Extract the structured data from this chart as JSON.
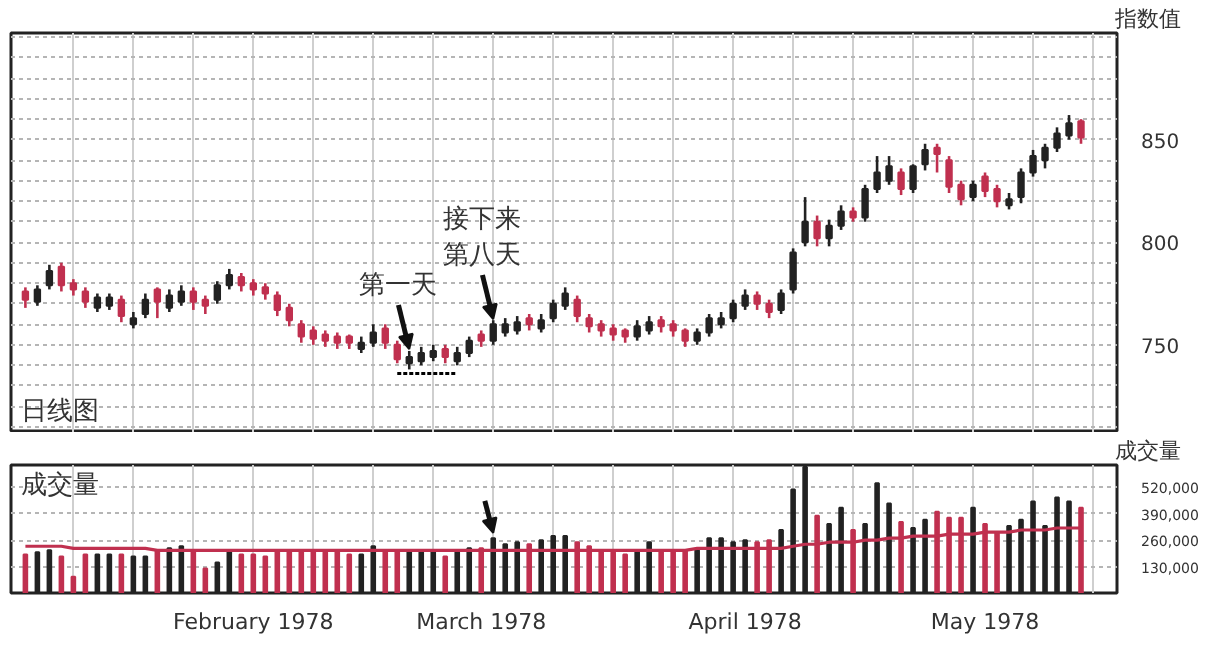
{
  "chart_data": [
    {
      "type": "candlestick",
      "ylabel": "指数值",
      "categories": [
        null,
        null,
        null,
        null,
        null,
        null,
        null,
        null,
        null,
        null,
        null,
        null,
        null,
        null,
        null,
        null,
        null,
        null,
        null,
        null,
        null,
        null,
        null,
        null,
        null,
        null,
        null,
        null,
        null,
        null,
        null,
        null,
        null,
        null,
        null,
        null,
        null,
        null,
        null,
        null,
        null,
        null,
        null,
        null,
        null,
        null,
        null,
        null,
        null,
        null,
        null,
        null,
        null,
        null,
        null,
        null,
        null,
        null,
        null,
        null,
        null,
        null,
        null,
        null,
        null,
        null,
        null,
        null,
        null,
        null,
        null,
        null,
        null,
        null,
        null,
        null,
        null,
        null,
        null,
        null,
        null,
        null,
        null,
        null,
        null,
        null,
        null,
        null,
        null
      ],
      "ohlc": [
        [
          776,
          778,
          768,
          772
        ],
        [
          771,
          779,
          769,
          777
        ],
        [
          779,
          789,
          777,
          786
        ],
        [
          788,
          790,
          776,
          779
        ],
        [
          780,
          782,
          774,
          777
        ],
        [
          776,
          778,
          768,
          771
        ],
        [
          768,
          775,
          766,
          773
        ],
        [
          769,
          775,
          767,
          773
        ],
        [
          772,
          774,
          761,
          764
        ],
        [
          760,
          766,
          758,
          763
        ],
        [
          765,
          775,
          763,
          772
        ],
        [
          777,
          778,
          763,
          771
        ],
        [
          768,
          777,
          766,
          774
        ],
        [
          771,
          779,
          769,
          776
        ],
        [
          776,
          778,
          767,
          771
        ],
        [
          772,
          774,
          765,
          769
        ],
        [
          772,
          781,
          770,
          779
        ],
        [
          779,
          787,
          777,
          784
        ],
        [
          783,
          785,
          776,
          779
        ],
        [
          780,
          782,
          774,
          777
        ],
        [
          778,
          780,
          772,
          775
        ],
        [
          774,
          776,
          764,
          767
        ],
        [
          768,
          770,
          759,
          762
        ],
        [
          760,
          762,
          751,
          754
        ],
        [
          757,
          759,
          750,
          753
        ],
        [
          755,
          757,
          749,
          752
        ],
        [
          754,
          756,
          748,
          751
        ],
        [
          754,
          755,
          748,
          751
        ],
        [
          748,
          754,
          746,
          751
        ],
        [
          751,
          760,
          749,
          756
        ],
        [
          758,
          760,
          748,
          751
        ],
        [
          750,
          752,
          741,
          743
        ],
        [
          741,
          747,
          738,
          744
        ],
        [
          742,
          749,
          740,
          746
        ],
        [
          744,
          750,
          742,
          747
        ],
        [
          748,
          750,
          741,
          744
        ],
        [
          742,
          749,
          740,
          746
        ],
        [
          746,
          754,
          744,
          752
        ],
        [
          755,
          757,
          749,
          752
        ],
        [
          752,
          762,
          750,
          760
        ],
        [
          756,
          763,
          754,
          760
        ],
        [
          757,
          764,
          755,
          761
        ],
        [
          763,
          765,
          757,
          760
        ],
        [
          758,
          765,
          756,
          762
        ],
        [
          763,
          772,
          761,
          770
        ],
        [
          769,
          778,
          767,
          775
        ],
        [
          772,
          774,
          761,
          764
        ],
        [
          763,
          765,
          756,
          759
        ],
        [
          760,
          762,
          754,
          757
        ],
        [
          758,
          760,
          752,
          755
        ],
        [
          757,
          758,
          751,
          754
        ],
        [
          754,
          762,
          752,
          759
        ],
        [
          757,
          764,
          755,
          761
        ],
        [
          762,
          764,
          756,
          759
        ],
        [
          760,
          762,
          754,
          757
        ],
        [
          757,
          758,
          749,
          752
        ],
        [
          752,
          758,
          750,
          756
        ],
        [
          756,
          765,
          754,
          763
        ],
        [
          760,
          766,
          758,
          763
        ],
        [
          763,
          772,
          761,
          770
        ],
        [
          769,
          777,
          767,
          774
        ],
        [
          774,
          776,
          767,
          770
        ],
        [
          770,
          772,
          763,
          766
        ],
        [
          767,
          777,
          765,
          775
        ],
        [
          777,
          797,
          775,
          795
        ],
        [
          800,
          822,
          798,
          810
        ],
        [
          810,
          813,
          798,
          802
        ],
        [
          802,
          811,
          798,
          808
        ],
        [
          808,
          818,
          806,
          815
        ],
        [
          815,
          817,
          810,
          812
        ],
        [
          812,
          828,
          810,
          826
        ],
        [
          826,
          842,
          824,
          834
        ],
        [
          830,
          842,
          828,
          837
        ],
        [
          834,
          836,
          823,
          826
        ],
        [
          826,
          838,
          824,
          837
        ],
        [
          838,
          848,
          835,
          845
        ],
        [
          846,
          848,
          834,
          843
        ],
        [
          840,
          842,
          824,
          827
        ],
        [
          828,
          830,
          818,
          821
        ],
        [
          822,
          830,
          820,
          828
        ],
        [
          832,
          834,
          822,
          825
        ],
        [
          826,
          828,
          817,
          820
        ],
        [
          818,
          824,
          816,
          821
        ],
        [
          822,
          836,
          819,
          834
        ],
        [
          834,
          845,
          832,
          842
        ],
        [
          840,
          848,
          836,
          846
        ],
        [
          846,
          856,
          844,
          853
        ],
        [
          852,
          862,
          850,
          858
        ],
        [
          859,
          860,
          848,
          851
        ]
      ],
      "colors": [
        "#c0304f",
        "#222222",
        "#222222",
        "#c0304f",
        "#c0304f",
        "#c0304f",
        "#222222",
        "#222222",
        "#c0304f",
        "#222222",
        "#222222",
        "#c0304f",
        "#222222",
        "#222222",
        "#c0304f",
        "#c0304f",
        "#222222",
        "#222222",
        "#c0304f",
        "#c0304f",
        "#c0304f",
        "#c0304f",
        "#c0304f",
        "#c0304f",
        "#c0304f",
        "#c0304f",
        "#c0304f",
        "#c0304f",
        "#222222",
        "#222222",
        "#c0304f",
        "#c0304f",
        "#222222",
        "#222222",
        "#222222",
        "#c0304f",
        "#222222",
        "#222222",
        "#c0304f",
        "#222222",
        "#222222",
        "#222222",
        "#c0304f",
        "#222222",
        "#222222",
        "#222222",
        "#c0304f",
        "#c0304f",
        "#c0304f",
        "#c0304f",
        "#c0304f",
        "#222222",
        "#222222",
        "#c0304f",
        "#c0304f",
        "#c0304f",
        "#222222",
        "#222222",
        "#222222",
        "#222222",
        "#222222",
        "#c0304f",
        "#c0304f",
        "#222222",
        "#222222",
        "#222222",
        "#c0304f",
        "#222222",
        "#222222",
        "#c0304f",
        "#222222",
        "#222222",
        "#222222",
        "#c0304f",
        "#222222",
        "#222222",
        "#c0304f",
        "#c0304f",
        "#c0304f",
        "#222222",
        "#c0304f",
        "#c0304f",
        "#222222",
        "#222222",
        "#222222",
        "#222222",
        "#222222",
        "#222222",
        "#c0304f"
      ],
      "series": [
        {
          "type": "line",
          "values": [
            null,
            null,
            null,
            null,
            null,
            null,
            null,
            null,
            null,
            null,
            null,
            null,
            null,
            null,
            null,
            null,
            null,
            null,
            null,
            null,
            null,
            null,
            null,
            null,
            null,
            null,
            null,
            null,
            null,
            null,
            null,
            736,
            736,
            736,
            736,
            736,
            736,
            null,
            null,
            null,
            null,
            null,
            null,
            null,
            null,
            null,
            null,
            null,
            null,
            null,
            null,
            null,
            null,
            null,
            null,
            null,
            null,
            null,
            null,
            null,
            null,
            null,
            null,
            null,
            null,
            null,
            null,
            null,
            null,
            null,
            null,
            null,
            null,
            null,
            null,
            null,
            null,
            null,
            null,
            null,
            null,
            null,
            null,
            null,
            null,
            null,
            null,
            null,
            null
          ],
          "color": "#000000",
          "line_style": "dotted"
        }
      ],
      "ylim": [
        707,
        902
      ],
      "yticks": [
        {
          "value": 710,
          "label": null
        },
        {
          "value": 720,
          "label": null
        },
        {
          "value": 730,
          "label": null
        },
        {
          "value": 740,
          "label": null
        },
        750,
        {
          "value": 760,
          "label": null
        },
        {
          "value": 770,
          "label": null
        },
        {
          "value": 780,
          "label": null
        },
        {
          "value": 790,
          "label": null
        },
        800,
        {
          "value": 810,
          "label": null
        },
        {
          "value": 820,
          "label": null
        },
        {
          "value": 830,
          "label": null
        },
        {
          "value": 840,
          "label": null
        },
        850,
        {
          "value": 860,
          "label": null
        },
        {
          "value": 870,
          "label": null
        },
        {
          "value": 880,
          "label": null
        },
        {
          "value": 890,
          "label": null
        },
        {
          "value": 900,
          "label": null
        }
      ],
      "tick_labels": "y",
      "grid": true,
      "annotations": [
        "日线图",
        "第一天",
        "接下来第八天"
      ]
    },
    {
      "type": "bar",
      "ylabel": "成交量",
      "categories": [
        null,
        null,
        null,
        null,
        null,
        null,
        null,
        null,
        null,
        null,
        null,
        null,
        null,
        null,
        null,
        null,
        null,
        null,
        null,
        "February 1978",
        null,
        null,
        null,
        null,
        null,
        null,
        null,
        null,
        null,
        null,
        null,
        null,
        null,
        null,
        null,
        null,
        null,
        null,
        "March 1978",
        null,
        null,
        null,
        null,
        null,
        null,
        null,
        null,
        null,
        null,
        null,
        null,
        null,
        null,
        null,
        null,
        null,
        null,
        null,
        null,
        null,
        "April 1978",
        null,
        null,
        null,
        null,
        null,
        null,
        null,
        null,
        null,
        null,
        null,
        null,
        null,
        null,
        null,
        null,
        null,
        null,
        null,
        "May 1978",
        null,
        null,
        null,
        null,
        null,
        null,
        null,
        null
      ],
      "series": [
        {
          "type": "bar",
          "values": [
            190000,
            200000,
            210000,
            180000,
            80000,
            190000,
            190000,
            190000,
            190000,
            180000,
            180000,
            210000,
            220000,
            230000,
            210000,
            120000,
            150000,
            210000,
            190000,
            190000,
            180000,
            210000,
            210000,
            210000,
            210000,
            200000,
            210000,
            190000,
            190000,
            230000,
            210000,
            210000,
            210000,
            210000,
            210000,
            180000,
            210000,
            220000,
            220000,
            270000,
            240000,
            250000,
            240000,
            260000,
            280000,
            280000,
            250000,
            230000,
            210000,
            200000,
            190000,
            210000,
            250000,
            210000,
            210000,
            210000,
            210000,
            270000,
            270000,
            250000,
            260000,
            250000,
            260000,
            310000,
            510000,
            620000,
            380000,
            340000,
            420000,
            310000,
            340000,
            540000,
            440000,
            350000,
            320000,
            360000,
            400000,
            370000,
            370000,
            420000,
            340000,
            300000,
            330000,
            360000,
            450000,
            330000,
            470000,
            450000,
            420000
          ],
          "colors": [
            "#c0304f",
            "#222222",
            "#222222",
            "#c0304f",
            "#c0304f",
            "#c0304f",
            "#222222",
            "#222222",
            "#c0304f",
            "#222222",
            "#222222",
            "#c0304f",
            "#222222",
            "#222222",
            "#c0304f",
            "#c0304f",
            "#222222",
            "#222222",
            "#c0304f",
            "#c0304f",
            "#c0304f",
            "#c0304f",
            "#c0304f",
            "#c0304f",
            "#c0304f",
            "#c0304f",
            "#c0304f",
            "#c0304f",
            "#222222",
            "#222222",
            "#c0304f",
            "#c0304f",
            "#222222",
            "#222222",
            "#222222",
            "#c0304f",
            "#222222",
            "#222222",
            "#c0304f",
            "#222222",
            "#222222",
            "#222222",
            "#c0304f",
            "#222222",
            "#222222",
            "#222222",
            "#c0304f",
            "#c0304f",
            "#c0304f",
            "#c0304f",
            "#c0304f",
            "#222222",
            "#222222",
            "#c0304f",
            "#c0304f",
            "#c0304f",
            "#222222",
            "#222222",
            "#222222",
            "#222222",
            "#222222",
            "#c0304f",
            "#c0304f",
            "#222222",
            "#222222",
            "#222222",
            "#c0304f",
            "#222222",
            "#222222",
            "#c0304f",
            "#222222",
            "#222222",
            "#222222",
            "#c0304f",
            "#222222",
            "#222222",
            "#c0304f",
            "#c0304f",
            "#c0304f",
            "#222222",
            "#c0304f",
            "#c0304f",
            "#222222",
            "#222222",
            "#222222",
            "#222222",
            "#222222",
            "#222222",
            "#c0304f"
          ]
        },
        {
          "type": "line",
          "values": [
            230000,
            230000,
            230000,
            230000,
            220000,
            220000,
            220000,
            220000,
            220000,
            220000,
            220000,
            210000,
            210000,
            210000,
            210000,
            210000,
            210000,
            210000,
            210000,
            210000,
            210000,
            210000,
            210000,
            210000,
            210000,
            210000,
            210000,
            210000,
            210000,
            210000,
            210000,
            210000,
            210000,
            210000,
            210000,
            210000,
            210000,
            210000,
            210000,
            210000,
            210000,
            210000,
            210000,
            210000,
            210000,
            210000,
            210000,
            210000,
            210000,
            210000,
            210000,
            210000,
            210000,
            210000,
            210000,
            210000,
            220000,
            220000,
            220000,
            220000,
            220000,
            220000,
            220000,
            220000,
            230000,
            240000,
            240000,
            250000,
            250000,
            250000,
            260000,
            260000,
            270000,
            270000,
            280000,
            280000,
            280000,
            290000,
            290000,
            290000,
            300000,
            300000,
            300000,
            310000,
            310000,
            310000,
            320000,
            320000,
            320000
          ],
          "color": "#c0304f"
        }
      ],
      "ylim": [
        0,
        630000
      ],
      "yticks": [
        {
          "value": 130000,
          "label": "130,000"
        },
        {
          "value": 260000,
          "label": "260,000"
        },
        {
          "value": 390000,
          "label": "390,000"
        },
        {
          "value": 520000,
          "label": "520,000"
        }
      ],
      "grid": true,
      "annotations": [
        "成交量"
      ]
    }
  ]
}
